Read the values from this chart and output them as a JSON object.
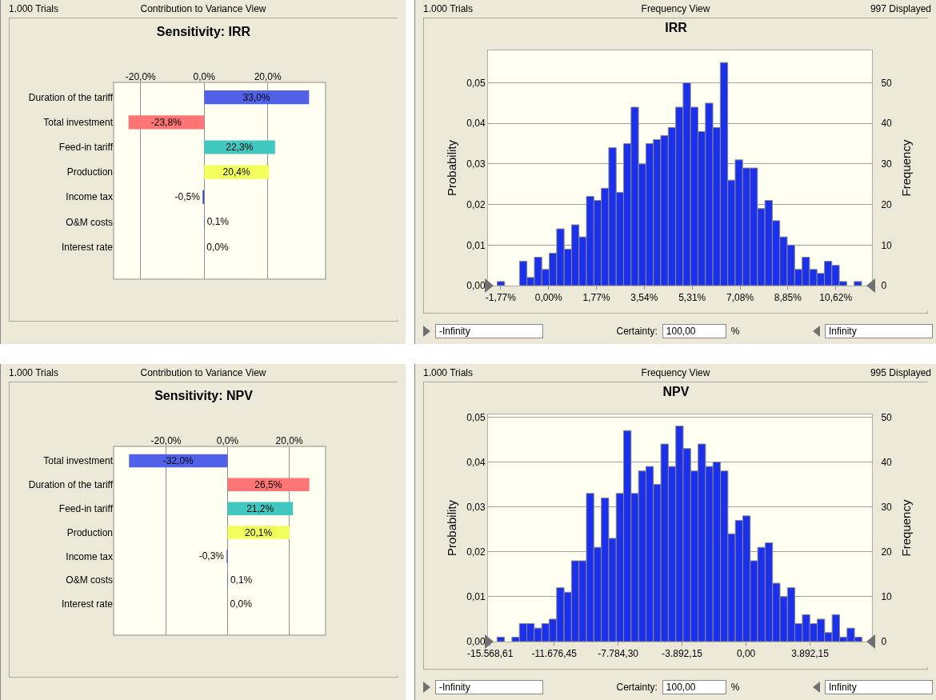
{
  "chart_data": [
    {
      "type": "bar",
      "orientation": "horizontal",
      "title": "Sensitivity: IRR",
      "annotations": [
        "1.000 Trials",
        "Contribution to Variance View"
      ],
      "categories": [
        "Duration of the tariff",
        "Total investment",
        "Feed-in tariff",
        "Production",
        "Income tax",
        "O&M costs",
        "Interest rate"
      ],
      "values": [
        33.0,
        -23.8,
        22.3,
        20.4,
        -0.5,
        0.1,
        0.0
      ],
      "colors": [
        "#5262e8",
        "#ff7474",
        "#40c8c0",
        "#f2ff5c",
        "#3050d0",
        "#3050d0",
        "#3050d0"
      ],
      "value_labels": [
        "33,0%",
        "-23,8%",
        "22,3%",
        "20,4%",
        "-0,5%",
        "0,1%",
        "0,0%"
      ],
      "xlim": [
        -28.5,
        38.2
      ],
      "xticks": [
        {
          "value": -20,
          "label": "-20,0%"
        },
        {
          "value": 0,
          "label": "0,0%"
        },
        {
          "value": 20,
          "label": "20,0%"
        }
      ],
      "grid": "x"
    },
    {
      "type": "histogram",
      "title": "IRR",
      "ylabel": "Probability",
      "y2label": "Frequency",
      "annotations": [
        "1.000 Trials",
        "Frequency View",
        "997 Displayed",
        "-Infinity",
        "Certainty:",
        "100,00",
        "%",
        "Infinity"
      ],
      "bins": [
        -1.9,
        -1.625,
        -1.35,
        -1.075,
        -0.8,
        -0.525,
        -0.25,
        0.025,
        0.3,
        0.575,
        0.85,
        1.125,
        1.4,
        1.675,
        1.95,
        2.225,
        2.5,
        2.775,
        3.05,
        3.325,
        3.6,
        3.875,
        4.15,
        4.425,
        4.7,
        4.975,
        5.25,
        5.525,
        5.8,
        6.075,
        6.35,
        6.625,
        6.9,
        7.175,
        7.45,
        7.725,
        8.0,
        8.275,
        8.55,
        8.825,
        9.1,
        9.375,
        9.65,
        9.925,
        10.2,
        10.475,
        10.75,
        11.025,
        11.3,
        11.575
      ],
      "series": [
        {
          "axis": "y2",
          "color": "#1a30ea",
          "values": [
            1,
            0,
            0,
            6,
            2,
            7,
            4,
            8,
            14,
            9,
            15,
            12,
            22,
            21,
            24,
            34,
            23,
            35,
            44,
            30,
            35,
            36,
            37,
            39,
            44,
            50,
            44,
            38,
            45,
            39,
            55,
            26,
            31,
            29,
            29,
            19,
            21,
            16,
            12,
            10,
            4,
            7,
            4,
            3,
            6,
            5,
            1,
            0,
            1
          ]
        }
      ],
      "xlim": [
        -2.24,
        11.96
      ],
      "xticks": [
        {
          "value": -1.77,
          "label": "-1,77%"
        },
        {
          "value": 0,
          "label": "0,00%"
        },
        {
          "value": 1.77,
          "label": "1,77%"
        },
        {
          "value": 3.54,
          "label": "3,54%"
        },
        {
          "value": 5.31,
          "label": "5,31%"
        },
        {
          "value": 7.08,
          "label": "7,08%"
        },
        {
          "value": 8.85,
          "label": "8,85%"
        },
        {
          "value": 10.62,
          "label": "10,62%"
        }
      ],
      "ylim": [
        0,
        0.058
      ],
      "yticks": [
        {
          "value": 0,
          "label": "0,00"
        },
        {
          "value": 0.01,
          "label": "0,01"
        },
        {
          "value": 0.02,
          "label": "0,02"
        },
        {
          "value": 0.03,
          "label": "0,03"
        },
        {
          "value": 0.04,
          "label": "0,04"
        },
        {
          "value": 0.05,
          "label": "0,05"
        }
      ],
      "y2lim": [
        0,
        58
      ],
      "y2ticks": [
        0,
        10,
        20,
        30,
        40,
        50
      ],
      "grid": "y"
    },
    {
      "type": "bar",
      "orientation": "horizontal",
      "title": "Sensitivity: NPV",
      "annotations": [
        "1.000 Trials",
        "Contribution to Variance View"
      ],
      "categories": [
        "Total investment",
        "Duration of the tariff",
        "Feed-in tariff",
        "Production",
        "Income tax",
        "O&M costs",
        "Interest rate"
      ],
      "values": [
        -32.0,
        26.5,
        21.2,
        20.1,
        -0.3,
        0.1,
        0.0
      ],
      "colors": [
        "#5262e8",
        "#ff7474",
        "#40c8c0",
        "#f2ff5c",
        "#3050d0",
        "#3050d0",
        "#3050d0"
      ],
      "value_labels": [
        "-32,0%",
        "26,5%",
        "21,2%",
        "20,1%",
        "-0,3%",
        "0,1%",
        "0,0%"
      ],
      "xlim": [
        -37.0,
        31.8
      ],
      "xticks": [
        {
          "value": -20,
          "label": "-20,0%"
        },
        {
          "value": 0,
          "label": "0,0%"
        },
        {
          "value": 20,
          "label": "20,0%"
        }
      ],
      "grid": "x"
    },
    {
      "type": "histogram",
      "title": "NPV",
      "ylabel": "Probability",
      "y2label": "Frequency",
      "annotations": [
        "1.000 Trials",
        "Frequency View",
        "995 Displayed",
        "-Infinity",
        "Certainty:",
        "100,00",
        "%",
        "Infinity"
      ],
      "bins": [
        -15150,
        -14697,
        -14244,
        -13791,
        -13338,
        -12885,
        -12432,
        -11979,
        -11526,
        -11073,
        -10620,
        -10167,
        -9714,
        -9261,
        -8808,
        -8355,
        -7902,
        -7449,
        -6996,
        -6543,
        -6090,
        -5637,
        -5184,
        -4731,
        -4278,
        -3825,
        -3372,
        -2919,
        -2466,
        -2013,
        -1560,
        -1107,
        -654,
        -201,
        252,
        705,
        1158,
        1611,
        2064,
        2517,
        2970,
        3423,
        3876,
        4329,
        4782,
        5235,
        5688,
        6141,
        6594,
        7047
      ],
      "series": [
        {
          "axis": "y2",
          "color": "#1a30ea",
          "values": [
            1,
            0,
            1,
            4,
            4,
            3,
            4,
            5,
            12,
            11,
            18,
            18,
            33,
            21,
            32,
            23,
            33,
            47,
            33,
            38,
            39,
            35,
            44,
            39,
            48,
            43,
            38,
            44,
            39,
            40,
            38,
            24,
            27,
            28,
            18,
            21,
            22,
            13,
            10,
            12,
            4,
            6,
            4,
            5,
            2,
            6,
            1,
            3,
            1
          ]
        }
      ],
      "xlim": [
        -15700,
        7660
      ],
      "xticks": [
        {
          "value": -15568.61,
          "label": "-15.568,61"
        },
        {
          "value": -11676.45,
          "label": "-11.676,45"
        },
        {
          "value": -7784.3,
          "label": "-7.784,30"
        },
        {
          "value": -3892.15,
          "label": "-3.892,15"
        },
        {
          "value": 0,
          "label": "0,00"
        },
        {
          "value": 3892.15,
          "label": "3.892,15"
        }
      ],
      "ylim": [
        0,
        0.0506
      ],
      "yticks": [
        {
          "value": 0,
          "label": "0,00"
        },
        {
          "value": 0.01,
          "label": "0,01"
        },
        {
          "value": 0.02,
          "label": "0,02"
        },
        {
          "value": 0.03,
          "label": "0,03"
        },
        {
          "value": 0.04,
          "label": "0,04"
        },
        {
          "value": 0.05,
          "label": "0,05"
        }
      ],
      "y2lim": [
        0,
        50.6
      ],
      "y2ticks": [
        0,
        10,
        20,
        30,
        40,
        50
      ],
      "grid": "y"
    }
  ]
}
